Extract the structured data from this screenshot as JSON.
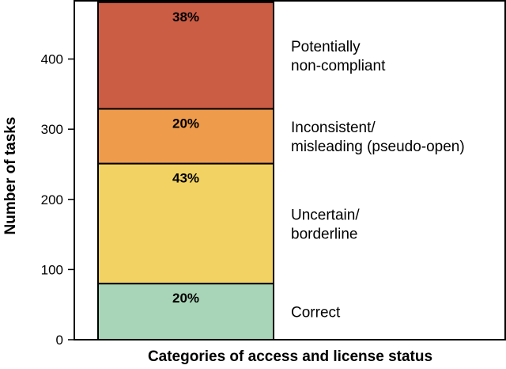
{
  "chart_data": {
    "type": "bar",
    "stacked": true,
    "xlabel": "Categories of access and license status",
    "ylabel": "Number of tasks",
    "ylim": [
      0,
      483
    ],
    "yticks": [
      0,
      100,
      200,
      300,
      400
    ],
    "legend_placement": "right",
    "grid": false,
    "segments": [
      {
        "name": "Correct",
        "lines": [
          "Correct"
        ],
        "value": 80,
        "label": "20%",
        "color": "#a8d5b7"
      },
      {
        "name": "Uncertain/ borderline",
        "lines": [
          "Uncertain/",
          "borderline"
        ],
        "value": 171,
        "label": "43%",
        "color": "#f2d263"
      },
      {
        "name": "Inconsistent/ misleading (pseudo-open)",
        "lines": [
          "Inconsistent/",
          "misleading (pseudo-open)"
        ],
        "value": 78,
        "label": "20%",
        "color": "#ee9b4c"
      },
      {
        "name": "Potentially non-compliant",
        "lines": [
          "Potentially",
          "non-compliant"
        ],
        "value": 152,
        "label": "38%",
        "color": "#cc5d45"
      }
    ]
  }
}
